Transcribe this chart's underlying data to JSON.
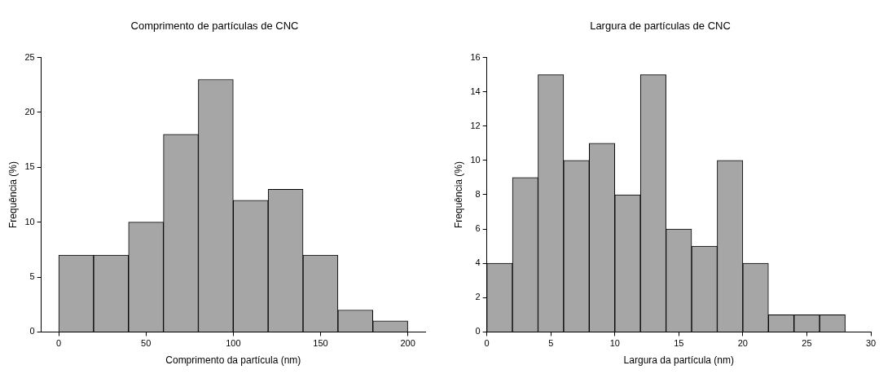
{
  "chart_data": [
    {
      "type": "histogram",
      "title": "Comprimento de partículas de CNC",
      "xlabel": "Comprimento da partícula (nm)",
      "ylabel": "Frequência (%)",
      "bins": [
        0,
        20,
        40,
        60,
        80,
        100,
        120,
        140,
        160,
        180,
        200
      ],
      "values": [
        7,
        7,
        10,
        18,
        23,
        12,
        13,
        7,
        2,
        1
      ],
      "color": "#a6a6a6",
      "xlim": [
        -10,
        210
      ],
      "xticks": [
        0,
        50,
        100,
        150,
        200
      ],
      "ylim": [
        0,
        25
      ],
      "yticks": [
        0,
        5,
        10,
        15,
        20,
        25
      ],
      "grid": false,
      "legend": false
    },
    {
      "type": "histogram",
      "title": "Largura de partículas de CNC",
      "xlabel": "Largura da partícula (nm)",
      "ylabel": "Frequência (%)",
      "bins": [
        0,
        2,
        4,
        6,
        8,
        10,
        12,
        14,
        16,
        18,
        20,
        22,
        24,
        26,
        28
      ],
      "values": [
        4,
        9,
        15,
        10,
        11,
        8,
        15,
        6,
        5,
        10,
        4,
        1,
        1,
        1
      ],
      "color": "#a6a6a6",
      "xlim": [
        0,
        30
      ],
      "xticks": [
        0,
        5,
        10,
        15,
        20,
        25,
        30
      ],
      "ylim": [
        0,
        16
      ],
      "yticks": [
        0,
        2,
        4,
        6,
        8,
        10,
        12,
        14,
        16
      ],
      "grid": false,
      "legend": false
    }
  ]
}
